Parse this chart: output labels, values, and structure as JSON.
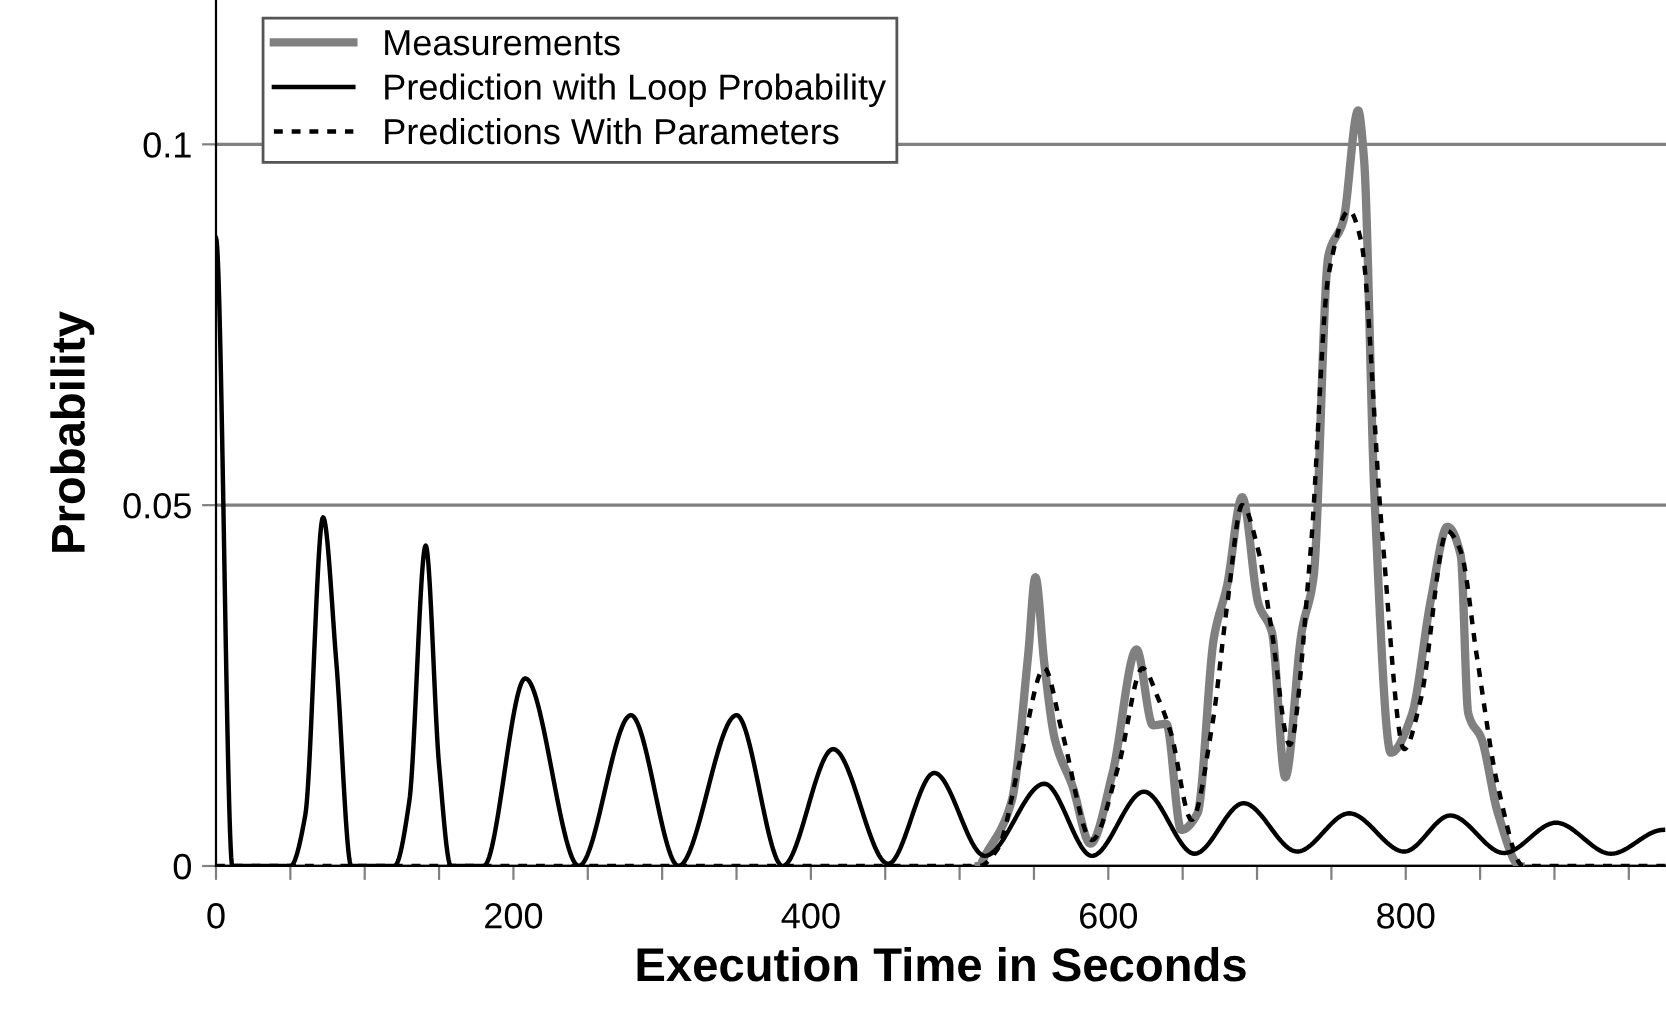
{
  "chart_data": {
    "type": "line",
    "xlabel": "Execution Time in Seconds",
    "ylabel": "Probability",
    "xlim": [
      0,
      975
    ],
    "ylim": [
      0,
      0.12
    ],
    "xticks": [
      0,
      {
        "value": 50,
        "label": null
      },
      {
        "value": 100,
        "label": null
      },
      {
        "value": 150,
        "label": null
      },
      200,
      {
        "value": 250,
        "label": null
      },
      {
        "value": 300,
        "label": null
      },
      {
        "value": 350,
        "label": null
      },
      400,
      {
        "value": 450,
        "label": null
      },
      {
        "value": 500,
        "label": null
      },
      {
        "value": 550,
        "label": null
      },
      600,
      {
        "value": 650,
        "label": null
      },
      {
        "value": 700,
        "label": null
      },
      {
        "value": 750,
        "label": null
      },
      800,
      {
        "value": 850,
        "label": null
      },
      {
        "value": 900,
        "label": null
      },
      {
        "value": 950,
        "label": null
      }
    ],
    "yticks": [
      0,
      0.05,
      0.1
    ],
    "grid": "y",
    "legend": "top left",
    "marker": "none",
    "series": [
      {
        "name": "Measurements",
        "color": "#808080",
        "line_style": "solid",
        "x": [
          513,
          517,
          535,
          546,
          551,
          557,
          564,
          576,
          588,
          603,
          619,
          630,
          639,
          649,
          660,
          671,
          680,
          690,
          701,
          710,
          719,
          730,
          738,
          748,
          758,
          768,
          772,
          779,
          790,
          804,
          817,
          828,
          837,
          842,
          851,
          862,
          877
        ],
        "values": [
          0,
          0.0014,
          0.009,
          0.029,
          0.04,
          0.028,
          0.0176,
          0.011,
          0.0031,
          0.013,
          0.03,
          0.0195,
          0.0197,
          0.005,
          0.0073,
          0.0316,
          0.039,
          0.0511,
          0.0363,
          0.0324,
          0.0123,
          0.0324,
          0.04,
          0.0846,
          0.0894,
          0.1047,
          0.0978,
          0.0511,
          0.0157,
          0.0209,
          0.037,
          0.047,
          0.043,
          0.0212,
          0.0176,
          0.0073,
          0
        ]
      },
      {
        "name": "Prediction with Loop Probability",
        "color": "#000000",
        "line_style": "solid",
        "x": [
          0,
          11,
          50,
          60,
          72,
          81,
          91,
          120,
          130,
          141,
          150,
          158,
          180,
          208,
          244,
          279,
          311,
          350,
          381,
          415,
          452,
          483,
          517,
          557,
          589,
          624,
          658,
          691,
          727,
          762,
          799,
          830,
          866,
          901,
          938,
          973
        ],
        "values": [
          0.087,
          0,
          0,
          0.007,
          0.0483,
          0.028,
          0,
          0,
          0.009,
          0.0444,
          0.014,
          0,
          0,
          0.026,
          0,
          0.0209,
          0,
          0.0209,
          0,
          0.0162,
          0.0003,
          0.0129,
          0.0014,
          0.0114,
          0.0014,
          0.0103,
          0.0017,
          0.0087,
          0.002,
          0.0073,
          0.002,
          0.007,
          0.0018,
          0.006,
          0.0017,
          0.005
        ]
      },
      {
        "name": "Predictions With Parameters",
        "color": "#000000",
        "line_style": "dashed",
        "x": [
          0,
          513,
          526,
          540,
          557,
          569,
          589,
          607,
          623,
          634,
          642,
          656,
          670,
          680,
          690,
          701,
          710,
          722,
          736,
          748,
          762,
          770,
          784,
          799,
          810,
          828,
          837,
          848,
          862,
          879,
          975
        ],
        "values": [
          0,
          0,
          0.0025,
          0.014,
          0.0274,
          0.0185,
          0.0036,
          0.014,
          0.0274,
          0.023,
          0.0185,
          0.0064,
          0.0197,
          0.0363,
          0.05,
          0.0436,
          0.0324,
          0.0168,
          0.0436,
          0.0818,
          0.0908,
          0.0866,
          0.0464,
          0.0162,
          0.023,
          0.0464,
          0.0436,
          0.0288,
          0.011,
          0,
          0
        ]
      }
    ]
  }
}
